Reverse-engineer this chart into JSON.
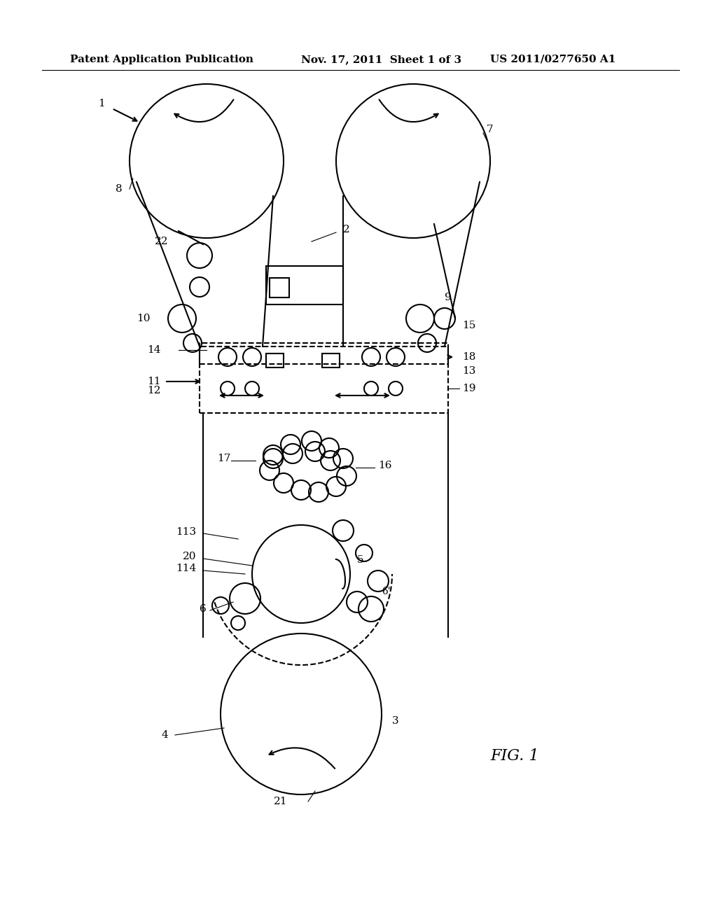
{
  "bg_color": "#ffffff",
  "line_color": "#000000",
  "header_left": "Patent Application Publication",
  "header_mid": "Nov. 17, 2011  Sheet 1 of 3",
  "header_right": "US 2011/0277650 A1",
  "fig_label": "FIG. 1",
  "label_1": "1",
  "label_2": "2",
  "label_3": "3",
  "label_4": "4",
  "label_5": "5",
  "label_6": "6",
  "label_7": "7",
  "label_8": "8",
  "label_9": "9",
  "label_10": "10",
  "label_11": "11",
  "label_12": "12",
  "label_13": "13",
  "label_14": "14",
  "label_15": "15",
  "label_16": "16",
  "label_17": "17",
  "label_18": "18",
  "label_19": "19",
  "label_20": "20",
  "label_21": "21",
  "label_22": "22",
  "label_113": "113",
  "label_114": "114"
}
